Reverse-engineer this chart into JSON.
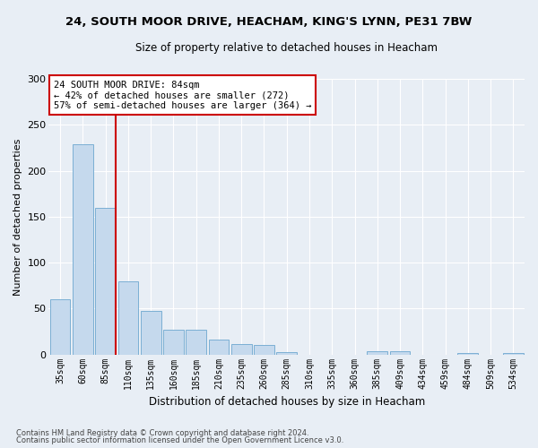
{
  "title": "24, SOUTH MOOR DRIVE, HEACHAM, KING'S LYNN, PE31 7BW",
  "subtitle": "Size of property relative to detached houses in Heacham",
  "xlabel": "Distribution of detached houses by size in Heacham",
  "ylabel": "Number of detached properties",
  "bar_color": "#c5d9ed",
  "bar_edge_color": "#7bafd4",
  "background_color": "#e8eef5",
  "grid_color": "#ffffff",
  "categories": [
    "35sqm",
    "60sqm",
    "85sqm",
    "110sqm",
    "135sqm",
    "160sqm",
    "185sqm",
    "210sqm",
    "235sqm",
    "260sqm",
    "285sqm",
    "310sqm",
    "335sqm",
    "360sqm",
    "385sqm",
    "409sqm",
    "434sqm",
    "459sqm",
    "484sqm",
    "509sqm",
    "534sqm"
  ],
  "values": [
    60,
    229,
    160,
    80,
    47,
    27,
    27,
    16,
    11,
    10,
    3,
    0,
    0,
    0,
    4,
    4,
    0,
    0,
    2,
    0,
    2
  ],
  "ylim": [
    0,
    300
  ],
  "yticks": [
    0,
    50,
    100,
    150,
    200,
    250,
    300
  ],
  "property_label": "24 SOUTH MOOR DRIVE: 84sqm",
  "annotation_line1": "← 42% of detached houses are smaller (272)",
  "annotation_line2": "57% of semi-detached houses are larger (364) →",
  "vline_x_index": 2,
  "vline_color": "#cc0000",
  "annotation_box_color": "#ffffff",
  "annotation_box_edge": "#cc0000",
  "footer_line1": "Contains HM Land Registry data © Crown copyright and database right 2024.",
  "footer_line2": "Contains public sector information licensed under the Open Government Licence v3.0."
}
